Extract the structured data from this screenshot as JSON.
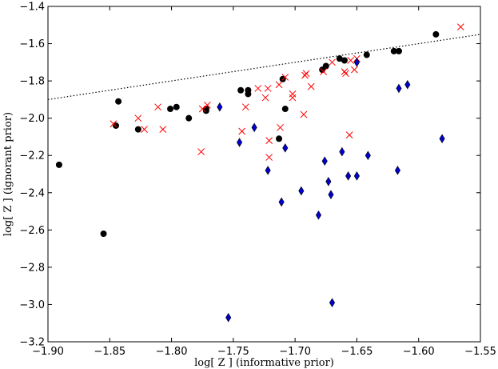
{
  "chart_data": {
    "type": "scatter",
    "title": "",
    "xlabel": "log[ Z ] (informative prior)",
    "ylabel": "log[ Z ] (ignorant prior)",
    "xlim": [
      -1.9,
      -1.55
    ],
    "ylim": [
      -3.2,
      -1.4
    ],
    "x_ticks": [
      -1.9,
      -1.85,
      -1.8,
      -1.75,
      -1.7,
      -1.65,
      -1.6,
      -1.55
    ],
    "x_tick_labels": [
      "−1.90",
      "−1.85",
      "−1.80",
      "−1.75",
      "−1.70",
      "−1.65",
      "−1.60",
      "−1.55"
    ],
    "y_ticks": [
      -3.2,
      -3.0,
      -2.8,
      -2.6,
      -2.4,
      -2.2,
      -2.0,
      -1.8,
      -1.6,
      -1.4
    ],
    "y_tick_labels": [
      "−3.2",
      "−3.0",
      "−2.8",
      "−2.6",
      "−2.4",
      "−2.2",
      "−2.0",
      "−1.8",
      "−1.6",
      "−1.4"
    ],
    "grid": false,
    "reference_line": {
      "style": "dotted",
      "color": "#000000",
      "points": [
        [
          -1.9,
          -1.9
        ],
        [
          -1.55,
          -1.55
        ]
      ]
    },
    "series": [
      {
        "name": "black circles",
        "marker": "circle",
        "color": "#000000",
        "points": [
          [
            -1.891,
            -2.25
          ],
          [
            -1.855,
            -2.62
          ],
          [
            -1.845,
            -2.04
          ],
          [
            -1.843,
            -1.91
          ],
          [
            -1.827,
            -2.06
          ],
          [
            -1.801,
            -1.95
          ],
          [
            -1.796,
            -1.94
          ],
          [
            -1.786,
            -2.0
          ],
          [
            -1.772,
            -1.96
          ],
          [
            -1.772,
            -1.95
          ],
          [
            -1.744,
            -1.85
          ],
          [
            -1.738,
            -1.85
          ],
          [
            -1.738,
            -1.87
          ],
          [
            -1.713,
            -2.11
          ],
          [
            -1.71,
            -1.79
          ],
          [
            -1.708,
            -1.95
          ],
          [
            -1.678,
            -1.74
          ],
          [
            -1.675,
            -1.72
          ],
          [
            -1.664,
            -1.68
          ],
          [
            -1.66,
            -1.69
          ],
          [
            -1.642,
            -1.66
          ],
          [
            -1.62,
            -1.64
          ],
          [
            -1.616,
            -1.64
          ],
          [
            -1.586,
            -1.55
          ]
        ]
      },
      {
        "name": "red crosses",
        "marker": "x",
        "color": "#ff0000",
        "points": [
          [
            -1.847,
            -2.03
          ],
          [
            -1.827,
            -2.0
          ],
          [
            -1.822,
            -2.06
          ],
          [
            -1.811,
            -1.94
          ],
          [
            -1.807,
            -2.06
          ],
          [
            -1.776,
            -2.18
          ],
          [
            -1.775,
            -1.95
          ],
          [
            -1.771,
            -1.93
          ],
          [
            -1.743,
            -2.07
          ],
          [
            -1.74,
            -1.94
          ],
          [
            -1.73,
            -1.84
          ],
          [
            -1.724,
            -1.89
          ],
          [
            -1.722,
            -1.84
          ],
          [
            -1.721,
            -2.12
          ],
          [
            -1.721,
            -2.21
          ],
          [
            -1.713,
            -1.82
          ],
          [
            -1.712,
            -2.05
          ],
          [
            -1.708,
            -1.78
          ],
          [
            -1.702,
            -1.87
          ],
          [
            -1.702,
            -1.89
          ],
          [
            -1.693,
            -1.98
          ],
          [
            -1.692,
            -1.77
          ],
          [
            -1.691,
            -1.76
          ],
          [
            -1.687,
            -1.83
          ],
          [
            -1.677,
            -1.75
          ],
          [
            -1.67,
            -1.7
          ],
          [
            -1.66,
            -1.75
          ],
          [
            -1.659,
            -1.76
          ],
          [
            -1.656,
            -2.09
          ],
          [
            -1.655,
            -1.69
          ],
          [
            -1.652,
            -1.74
          ],
          [
            -1.65,
            -1.68
          ],
          [
            -1.566,
            -1.51
          ]
        ]
      },
      {
        "name": "blue diamonds",
        "marker": "diamond",
        "color": "#0000cc",
        "points": [
          [
            -1.761,
            -1.94
          ],
          [
            -1.754,
            -3.07
          ],
          [
            -1.745,
            -2.13
          ],
          [
            -1.733,
            -2.05
          ],
          [
            -1.722,
            -2.28
          ],
          [
            -1.711,
            -2.45
          ],
          [
            -1.708,
            -2.16
          ],
          [
            -1.695,
            -2.39
          ],
          [
            -1.681,
            -2.52
          ],
          [
            -1.676,
            -2.23
          ],
          [
            -1.673,
            -2.34
          ],
          [
            -1.671,
            -2.41
          ],
          [
            -1.67,
            -2.99
          ],
          [
            -1.662,
            -2.18
          ],
          [
            -1.657,
            -2.31
          ],
          [
            -1.65,
            -2.31
          ],
          [
            -1.65,
            -1.7
          ],
          [
            -1.641,
            -2.2
          ],
          [
            -1.617,
            -2.28
          ],
          [
            -1.616,
            -1.84
          ],
          [
            -1.609,
            -1.82
          ],
          [
            -1.581,
            -2.11
          ]
        ]
      }
    ]
  }
}
